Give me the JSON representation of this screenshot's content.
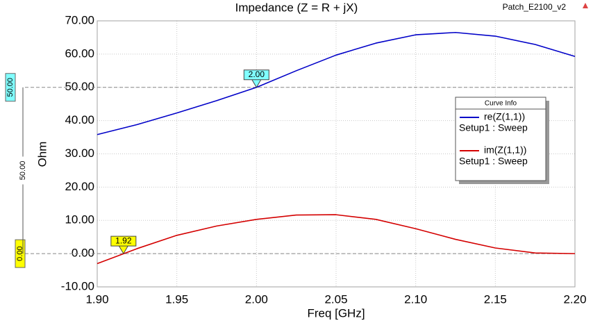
{
  "chart_data": {
    "type": "line",
    "title": "Impedance (Z = R + jX)",
    "project_label": "Patch_E2100_v2",
    "x_label": "Freq [GHz]",
    "y_label": "Ohm",
    "x": [
      1.9,
      1.925,
      1.95,
      1.975,
      2.0,
      2.025,
      2.05,
      2.075,
      2.1,
      2.125,
      2.15,
      2.175,
      2.2
    ],
    "series": [
      {
        "name": "re(Z(1,1))",
        "setup": "Setup1 : Sweep",
        "color": "#0000c8",
        "values": [
          35.8,
          38.8,
          42.3,
          46.0,
          50.0,
          55.0,
          59.7,
          63.3,
          65.8,
          66.5,
          65.4,
          62.9,
          59.3
        ]
      },
      {
        "name": "im(Z(1,1))",
        "setup": "Setup1 : Sweep",
        "color": "#d40000",
        "values": [
          -3.0,
          1.5,
          5.5,
          8.3,
          10.3,
          11.6,
          11.7,
          10.3,
          7.5,
          4.3,
          1.7,
          0.2,
          0.0
        ]
      }
    ],
    "xlim": [
      1.9,
      2.2
    ],
    "xticks": [
      {
        "value": 1.9,
        "label": "1.90"
      },
      {
        "value": 1.95,
        "label": "1.95"
      },
      {
        "value": 2.0,
        "label": "2.00"
      },
      {
        "value": 2.05,
        "label": "2.05"
      },
      {
        "value": 2.1,
        "label": "2.10"
      },
      {
        "value": 2.15,
        "label": "2.15"
      },
      {
        "value": 2.2,
        "label": "2.20"
      }
    ],
    "ylim": [
      -10,
      70
    ],
    "yticks": [
      {
        "value": -10,
        "label": "-10.00"
      },
      {
        "value": 0,
        "label": "0.00"
      },
      {
        "value": 10,
        "label": "10.00"
      },
      {
        "value": 20,
        "label": "20.00"
      },
      {
        "value": 30,
        "label": "30.00"
      },
      {
        "value": 40,
        "label": "40.00"
      },
      {
        "value": 50,
        "label": "50.00"
      },
      {
        "value": 60,
        "label": "60.00"
      },
      {
        "value": 70,
        "label": "70.00"
      }
    ],
    "grid": true,
    "legend_title": "Curve Info",
    "point_markers": [
      {
        "x": 2.0,
        "y": 50,
        "label": "2.00",
        "color": "#80ffff"
      },
      {
        "x": 1.9165,
        "y": 0,
        "label": "1.92",
        "color": "#ffff00"
      }
    ],
    "y_markers": [
      {
        "value": 50,
        "label": "50.00",
        "color": "#80ffff"
      },
      {
        "value": 0,
        "label": "0.00",
        "color": "#ffff00"
      }
    ],
    "y_delta": {
      "value": 50,
      "label": "50.00"
    }
  }
}
